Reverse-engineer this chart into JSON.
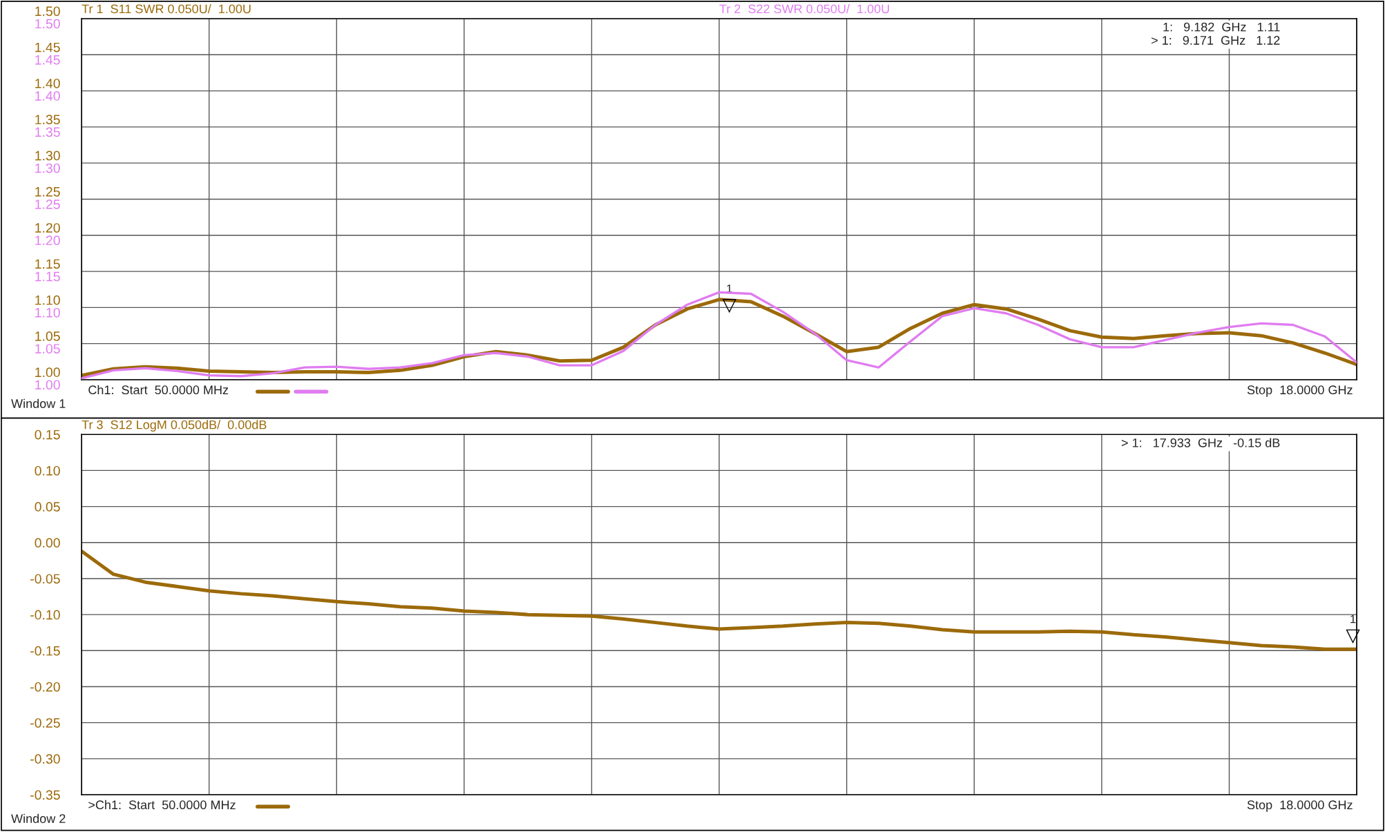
{
  "chart_data": [
    {
      "type": "line",
      "ylim": [
        1.0,
        1.5
      ],
      "y2lim": [
        1.0,
        1.5
      ],
      "grid": true,
      "tick_labels": "y",
      "categories": [
        null,
        null,
        null,
        null,
        null,
        null,
        null,
        null,
        null,
        null,
        null,
        null,
        null,
        null,
        null,
        null,
        null,
        null,
        null,
        null,
        null,
        null,
        null,
        null,
        null,
        null,
        null,
        null,
        null,
        null,
        null,
        null,
        null,
        null,
        null,
        null,
        null,
        null,
        null,
        null,
        null
      ],
      "yticks": [
        {
          "value": 1.0,
          "label": "1.00"
        },
        {
          "value": 1.05,
          "label": "1.05"
        },
        {
          "value": 1.1,
          "label": "1.10"
        },
        {
          "value": 1.15,
          "label": "1.15"
        },
        {
          "value": 1.2,
          "label": "1.20"
        },
        {
          "value": 1.25,
          "label": "1.25"
        },
        {
          "value": 1.3,
          "label": "1.30"
        },
        {
          "value": 1.35,
          "label": "1.35"
        },
        {
          "value": 1.4,
          "label": "1.40"
        },
        {
          "value": 1.45,
          "label": "1.45"
        },
        {
          "value": 1.5,
          "label": "1.50"
        }
      ],
      "y2ticks": [
        {
          "value": 1.0,
          "label": "1.00"
        },
        {
          "value": 1.05,
          "label": "1.05"
        },
        {
          "value": 1.1,
          "label": "1.10"
        },
        {
          "value": 1.15,
          "label": "1.15"
        },
        {
          "value": 1.2,
          "label": "1.20"
        },
        {
          "value": 1.25,
          "label": "1.25"
        },
        {
          "value": 1.3,
          "label": "1.30"
        },
        {
          "value": 1.35,
          "label": "1.35"
        },
        {
          "value": 1.4,
          "label": "1.40"
        },
        {
          "value": 1.45,
          "label": "1.45"
        },
        {
          "value": 1.5,
          "label": "1.50"
        }
      ],
      "series": [
        {
          "name": "Tr 1  S11 SWR 0.050U/  1.00U",
          "color": "#9c6a0a",
          "values": [
            1.006,
            1.015,
            1.018,
            1.016,
            1.012,
            1.011,
            1.01,
            1.011,
            1.011,
            1.01,
            1.013,
            1.02,
            1.032,
            1.039,
            1.034,
            1.026,
            1.027,
            1.045,
            1.076,
            1.098,
            1.111,
            1.108,
            1.088,
            1.064,
            1.039,
            1.045,
            1.071,
            1.092,
            1.104,
            1.098,
            1.084,
            1.068,
            1.059,
            1.057,
            1.061,
            1.064,
            1.065,
            1.061,
            1.051,
            1.037,
            1.021
          ]
        },
        {
          "name": "Tr 2  S22 SWR 0.050U/  1.00U",
          "color": "#e07cf0",
          "axis": "y2",
          "values": [
            1.002,
            1.013,
            1.016,
            1.012,
            1.006,
            1.005,
            1.009,
            1.017,
            1.018,
            1.015,
            1.017,
            1.023,
            1.034,
            1.037,
            1.032,
            1.02,
            1.02,
            1.04,
            1.076,
            1.104,
            1.121,
            1.119,
            1.094,
            1.064,
            1.027,
            1.017,
            1.053,
            1.088,
            1.099,
            1.092,
            1.076,
            1.056,
            1.045,
            1.045,
            1.055,
            1.065,
            1.073,
            1.078,
            1.076,
            1.06,
            1.024
          ]
        }
      ],
      "annotations": [
        "1:   9.182  GHz   1.11",
        "> 1:   9.171  GHz   1.12",
        "Ch1:  Start  50.0000 MHz",
        "Stop  18.0000 GHz",
        "Window 1",
        "1"
      ]
    },
    {
      "type": "line",
      "ylim": [
        -0.35,
        0.15
      ],
      "grid": true,
      "tick_labels": "y",
      "categories": [
        null,
        null,
        null,
        null,
        null,
        null,
        null,
        null,
        null,
        null,
        null,
        null,
        null,
        null,
        null,
        null,
        null,
        null,
        null,
        null,
        null,
        null,
        null,
        null,
        null,
        null,
        null,
        null,
        null,
        null,
        null,
        null,
        null,
        null,
        null,
        null,
        null,
        null,
        null,
        null,
        null
      ],
      "yticks": [
        {
          "value": -0.35,
          "label": "-0.35"
        },
        {
          "value": -0.3,
          "label": "-0.30"
        },
        {
          "value": -0.25,
          "label": "-0.25"
        },
        {
          "value": -0.2,
          "label": "-0.20"
        },
        {
          "value": -0.15,
          "label": "-0.15"
        },
        {
          "value": -0.1,
          "label": "-0.10"
        },
        {
          "value": -0.05,
          "label": "-0.05"
        },
        {
          "value": 0.0,
          "label": "0.00"
        },
        {
          "value": 0.05,
          "label": "0.05"
        },
        {
          "value": 0.1,
          "label": "0.10"
        },
        {
          "value": 0.15,
          "label": "0.15"
        }
      ],
      "series": [
        {
          "name": "Tr 3  S12 LogM 0.050dB/  0.00dB",
          "color": "#9c6a0a",
          "values": [
            -0.012,
            -0.044,
            -0.055,
            -0.061,
            -0.067,
            -0.071,
            -0.074,
            -0.078,
            -0.082,
            -0.085,
            -0.089,
            -0.091,
            -0.095,
            -0.097,
            -0.1,
            -0.101,
            -0.102,
            -0.106,
            -0.111,
            -0.116,
            -0.12,
            -0.118,
            -0.116,
            -0.113,
            -0.111,
            -0.112,
            -0.116,
            -0.121,
            -0.124,
            -0.124,
            -0.124,
            -0.123,
            -0.124,
            -0.128,
            -0.131,
            -0.135,
            -0.139,
            -0.143,
            -0.145,
            -0.148,
            -0.148
          ]
        }
      ],
      "annotations": [
        "> 1:   17.933  GHz   -0.15 dB",
        ">Ch1:  Start  50.0000 MHz",
        "Stop  18.0000 GHz",
        "Window 2",
        "1"
      ]
    }
  ]
}
